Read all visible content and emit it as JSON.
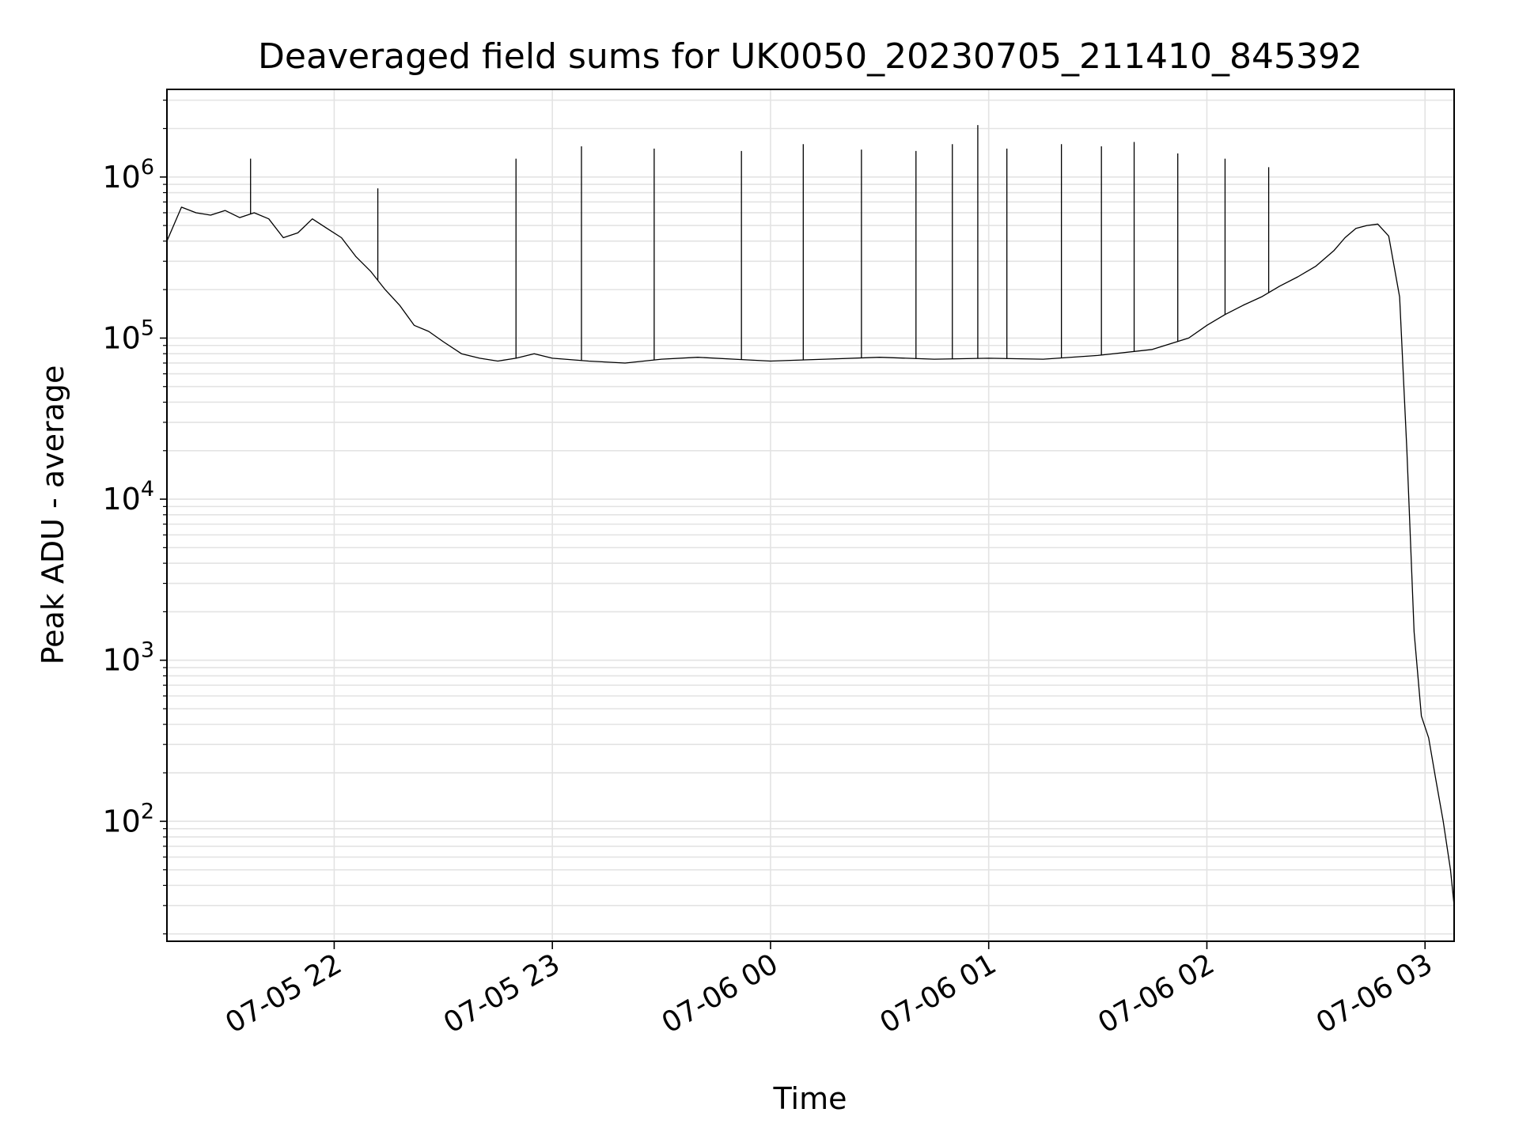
{
  "chart_data": {
    "type": "line",
    "title": "Deaveraged field sums for UK0050_20230705_211410_845392",
    "xlabel": "Time",
    "ylabel": "Peak ADU - average",
    "yscale": "log",
    "grid": true,
    "grid_minor": true,
    "legend": "none",
    "line_color": "#000000",
    "grid_color": "#e3e3e3",
    "xlim": [
      "2023-07-05 21:14",
      "2023-07-06 03:08"
    ],
    "ylim": [
      18,
      3500000
    ],
    "x_ticks": [
      {
        "value": "2023-07-05 22:00",
        "label": "07-05 22"
      },
      {
        "value": "2023-07-05 23:00",
        "label": "07-05 23"
      },
      {
        "value": "2023-07-06 00:00",
        "label": "07-06 00"
      },
      {
        "value": "2023-07-06 01:00",
        "label": "07-06 01"
      },
      {
        "value": "2023-07-06 02:00",
        "label": "07-06 02"
      },
      {
        "value": "2023-07-06 03:00",
        "label": "07-06 03"
      }
    ],
    "y_ticks": [
      {
        "value": 100,
        "base": "10",
        "exp": "2"
      },
      {
        "value": 1000,
        "base": "10",
        "exp": "3"
      },
      {
        "value": 10000,
        "base": "10",
        "exp": "4"
      },
      {
        "value": 100000,
        "base": "10",
        "exp": "5"
      },
      {
        "value": 1000000,
        "base": "10",
        "exp": "6"
      }
    ],
    "series": [
      {
        "x": [
          "2023-07-05 21:14",
          "2023-07-05 21:18",
          "2023-07-05 21:22",
          "2023-07-05 21:26",
          "2023-07-05 21:30",
          "2023-07-05 21:34",
          "2023-07-05 21:38",
          "2023-07-05 21:42",
          "2023-07-05 21:46",
          "2023-07-05 21:50",
          "2023-07-05 21:54",
          "2023-07-05 21:58",
          "2023-07-05 22:02",
          "2023-07-05 22:06",
          "2023-07-05 22:10",
          "2023-07-05 22:14",
          "2023-07-05 22:18",
          "2023-07-05 22:22",
          "2023-07-05 22:26",
          "2023-07-05 22:30",
          "2023-07-05 22:35",
          "2023-07-05 22:40",
          "2023-07-05 22:45",
          "2023-07-05 22:50",
          "2023-07-05 22:55",
          "2023-07-05 23:00",
          "2023-07-05 23:10",
          "2023-07-05 23:20",
          "2023-07-05 23:30",
          "2023-07-05 23:40",
          "2023-07-05 23:50",
          "2023-07-06 00:00",
          "2023-07-06 00:15",
          "2023-07-06 00:30",
          "2023-07-06 00:45",
          "2023-07-06 01:00",
          "2023-07-06 01:15",
          "2023-07-06 01:30",
          "2023-07-06 01:45",
          "2023-07-06 01:55",
          "2023-07-06 02:00",
          "2023-07-06 02:05",
          "2023-07-06 02:10",
          "2023-07-06 02:15",
          "2023-07-06 02:20",
          "2023-07-06 02:25",
          "2023-07-06 02:30",
          "2023-07-06 02:35",
          "2023-07-06 02:38",
          "2023-07-06 02:41",
          "2023-07-06 02:44",
          "2023-07-06 02:47",
          "2023-07-06 02:50",
          "2023-07-06 02:53",
          "2023-07-06 02:55",
          "2023-07-06 02:57",
          "2023-07-06 02:59",
          "2023-07-06 03:01",
          "2023-07-06 03:03",
          "2023-07-06 03:05",
          "2023-07-06 03:07",
          "2023-07-06 03:08"
        ],
        "y": [
          400000,
          650000,
          600000,
          580000,
          620000,
          560000,
          600000,
          550000,
          420000,
          450000,
          550000,
          480000,
          420000,
          320000,
          260000,
          200000,
          160000,
          120000,
          110000,
          95000,
          80000,
          75000,
          72000,
          75000,
          80000,
          75000,
          72000,
          70000,
          74000,
          76000,
          74000,
          72000,
          74000,
          76000,
          74000,
          75000,
          74000,
          78000,
          85000,
          100000,
          120000,
          140000,
          160000,
          180000,
          210000,
          240000,
          280000,
          350000,
          420000,
          480000,
          500000,
          510000,
          430000,
          180000,
          20000,
          1500,
          450,
          330,
          180,
          100,
          50,
          30
        ]
      }
    ],
    "spikes": [
      {
        "x": "2023-07-05 21:37",
        "y": 1300000
      },
      {
        "x": "2023-07-05 22:12",
        "y": 850000
      },
      {
        "x": "2023-07-05 22:50",
        "y": 1300000
      },
      {
        "x": "2023-07-05 23:08",
        "y": 1550000
      },
      {
        "x": "2023-07-05 23:28",
        "y": 1500000
      },
      {
        "x": "2023-07-05 23:52",
        "y": 1450000
      },
      {
        "x": "2023-07-06 00:09",
        "y": 1600000
      },
      {
        "x": "2023-07-06 00:25",
        "y": 1480000
      },
      {
        "x": "2023-07-06 00:40",
        "y": 1450000
      },
      {
        "x": "2023-07-06 00:50",
        "y": 1600000
      },
      {
        "x": "2023-07-06 00:57",
        "y": 2100000
      },
      {
        "x": "2023-07-06 01:05",
        "y": 1500000
      },
      {
        "x": "2023-07-06 01:20",
        "y": 1600000
      },
      {
        "x": "2023-07-06 01:31",
        "y": 1550000
      },
      {
        "x": "2023-07-06 01:40",
        "y": 1650000
      },
      {
        "x": "2023-07-06 01:52",
        "y": 1400000
      },
      {
        "x": "2023-07-06 02:05",
        "y": 1300000
      },
      {
        "x": "2023-07-06 02:17",
        "y": 1150000
      }
    ]
  }
}
